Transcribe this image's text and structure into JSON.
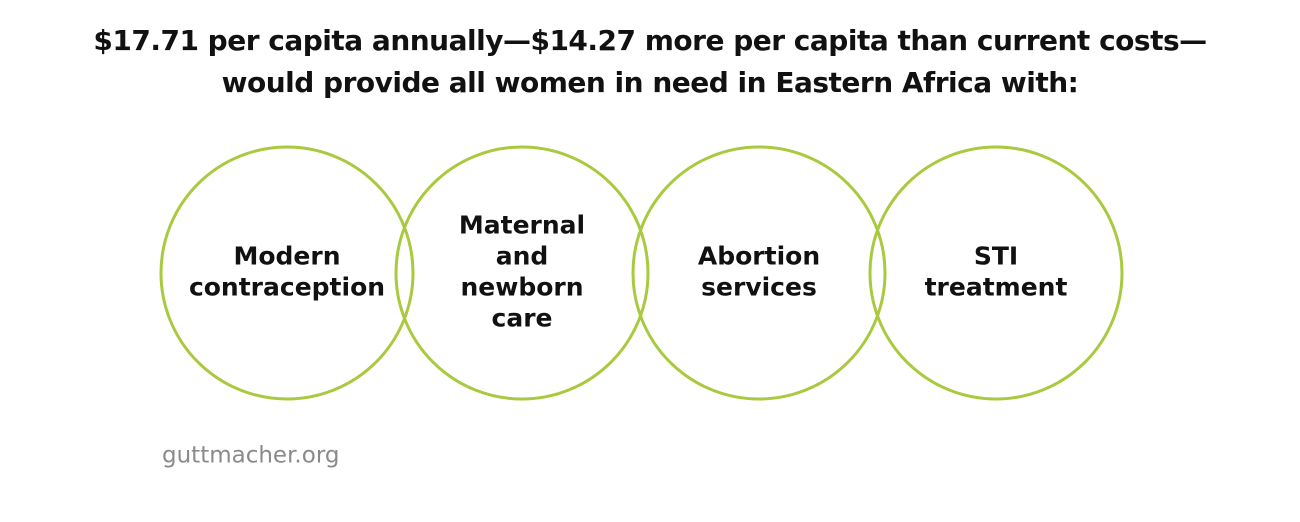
{
  "header": {
    "title_lines": [
      "$17.71 per capita annually—$14.27 more per capita than current costs—",
      "would provide all women in need in Eastern Africa with:"
    ]
  },
  "nodes": [
    {
      "label_lines": [
        "Modern",
        "contraception"
      ]
    },
    {
      "label_lines": [
        "Maternal",
        "and",
        "newborn",
        "care"
      ]
    },
    {
      "label_lines": [
        "Abortion",
        "services"
      ]
    },
    {
      "label_lines": [
        "STI",
        "treatment"
      ]
    }
  ],
  "footer": {
    "source": "guttmacher.org"
  }
}
